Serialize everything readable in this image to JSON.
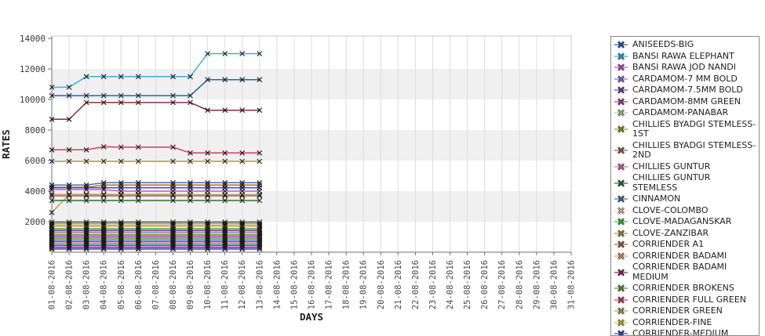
{
  "chart_data": {
    "type": "line",
    "title": "",
    "xlabel": "DAYS",
    "ylabel": "RATES",
    "legend_position": "right",
    "grid": "vertical-only",
    "ylim": [
      0,
      14000
    ],
    "y_tick_values": [
      2000,
      4000,
      6000,
      8000,
      10000,
      12000,
      14000
    ],
    "shaded_bands": [
      [
        10000,
        12000
      ],
      [
        6000,
        8000
      ],
      [
        2000,
        4000
      ]
    ],
    "x_tick_labels": [
      "01-08-2016",
      "02-08-2016",
      "03-08-2016",
      "04-08-2016",
      "05-08-2016",
      "06-08-2016",
      "07-08-2016",
      "08-08-2016",
      "09-08-2016",
      "10-08-2016",
      "11-08-2016",
      "12-08-2016",
      "13-08-2016",
      "14-08-2016",
      "15-08-2016",
      "16-08-2016",
      "17-08-2016",
      "18-08-2016",
      "19-08-2016",
      "20-08-2016",
      "21-08-2016",
      "22-08-2016",
      "23-08-2016",
      "24-08-2016",
      "25-08-2016",
      "26-08-2016",
      "27-08-2016",
      "28-08-2016",
      "29-08-2016",
      "30-08-2016",
      "31-08-2016"
    ],
    "data_dates": [
      "01-08-2016",
      "02-08-2016",
      "03-08-2016",
      "04-08-2016",
      "05-08-2016",
      "06-08-2016",
      "07-08-2016",
      "08-08-2016",
      "09-08-2016",
      "10-08-2016",
      "11-08-2016",
      "12-08-2016",
      "13-08-2016"
    ],
    "no_marker_date": "07-08-2016",
    "series": [
      {
        "name": "BANSI RAWA ELEPHANT",
        "color": "#35b1e0",
        "values": [
          10800,
          10800,
          11500,
          11500,
          11500,
          11500,
          11500,
          11500,
          11500,
          13000,
          13000,
          13000,
          13000
        ]
      },
      {
        "name": "ANISEEDS-BIG",
        "color": "#1f63b0",
        "values": [
          10250,
          10250,
          10250,
          10250,
          10250,
          10250,
          10250,
          10250,
          10250,
          11300,
          11300,
          11300,
          11300
        ]
      },
      {
        "name": "CORRIENDER BADAMI MEDIUM",
        "color": "#8b2a4a",
        "values": [
          8700,
          8700,
          9800,
          9800,
          9800,
          9800,
          9800,
          9800,
          9800,
          9300,
          9300,
          9300,
          9300
        ]
      },
      {
        "name": "CORRIENDER FULL GREEN",
        "color": "#d23b5a",
        "values": [
          6700,
          6700,
          6700,
          6900,
          6875,
          6875,
          6875,
          6875,
          6500,
          6500,
          6500,
          6500,
          6500
        ]
      },
      {
        "name": "CLOVE-ZANZIBAR",
        "color": "#a79a3a",
        "value": 5950
      },
      {
        "name": "CINNAMON",
        "color": "#4a6fb4",
        "values": [
          4400,
          4400,
          4400,
          4550,
          4550,
          4550,
          4550,
          4550,
          4550,
          4550,
          4550,
          4550,
          4550
        ]
      },
      {
        "name": "CORRIENDER A1",
        "color": "#a5693a",
        "values": [
          4250,
          4250,
          4250,
          4400,
          4400,
          4400,
          4400,
          4400,
          4400,
          4400,
          4400,
          4400,
          4400
        ]
      },
      {
        "name": "CORRIENDER-MEDIUM",
        "color": "#2f4fc0",
        "value": 4220
      },
      {
        "name": "BANSI RAWA JOD NANDI",
        "color": "#c94fc9",
        "values": [
          4100,
          4100,
          4100,
          4100,
          4000,
          4000,
          4000,
          4000,
          4000,
          4000,
          4000,
          4000,
          4000
        ]
      },
      {
        "name": "CORRIENDER BADAMI",
        "color": "#e89b70",
        "values": [
          3790,
          3790,
          3790,
          3790,
          3790,
          3790,
          3790,
          3790,
          null,
          null,
          null,
          null,
          null
        ]
      },
      {
        "name": "CHILLIES BYADGI STEMLESS-2ND",
        "color": "#a5604a",
        "value": 3690
      },
      {
        "name": "CORRIENDER GREEN",
        "color": "#b3a55e",
        "values": [
          2600,
          3770,
          3770,
          3770,
          3770,
          3770,
          3770,
          3770,
          3770,
          3770,
          3770,
          3770,
          3770
        ]
      },
      {
        "name": "CHILLIES GUNTUR STEMLESS",
        "color": "#2e7030",
        "value": 3385
      },
      {
        "name": "",
        "color": "#2a2a2a",
        "value": 1975
      },
      {
        "name": "CORRIENDER BROKENS",
        "color": "#6d8f2f",
        "value": 1860
      },
      {
        "name": "CLOVE-COLOMBO",
        "color": "#f0d8bc",
        "value": 1800
      },
      {
        "name": "CHILLIES GUNTUR",
        "color": "#e468b0",
        "value": 1740
      },
      {
        "name": "CORRIENDER-FINE",
        "color": "#becf31",
        "value": 1680
      },
      {
        "name": "CLOVE-MADAGANSKAR",
        "color": "#3dc13d",
        "value": 1560
      },
      {
        "name": "CARDAMOM-8MM GREEN",
        "color": "#a8439a",
        "value": 1470
      },
      {
        "name": "CARDAMOM-7.5MM BOLD",
        "color": "#7e3aa8",
        "value": 1400
      },
      {
        "name": "CARDAMOM-7 MM BOLD",
        "color": "#8d72d2",
        "value": 1310
      },
      {
        "name": "CARDAMOM-PANABAR",
        "color": "#a7d89e",
        "value": 1230
      },
      {
        "name": "CHILLIES BYADGI STEMLESS-1ST",
        "color": "#93a01e",
        "value": 1160
      },
      {
        "name": "",
        "color": "#7c5cd6",
        "value": 1080
      },
      {
        "name": "",
        "color": "#cc44cc",
        "value": 1000
      },
      {
        "name": "",
        "color": "#49a349",
        "value": 920
      },
      {
        "name": "",
        "color": "#e0823e",
        "value": 840
      },
      {
        "name": "",
        "color": "#4868d8",
        "value": 760
      },
      {
        "name": "",
        "color": "#6a3fb0",
        "value": 680
      },
      {
        "name": "",
        "color": "#e070a0",
        "value": 600
      },
      {
        "name": "",
        "color": "#3aa8a0",
        "value": 520
      },
      {
        "name": "",
        "color": "#c03a3a",
        "value": 440
      },
      {
        "name": "",
        "color": "#9a55e0",
        "value": 360
      },
      {
        "name": "",
        "color": "#3b4fc0",
        "value": 280
      },
      {
        "name": "",
        "color": "#5c2f9e",
        "value": 200
      }
    ]
  },
  "legend": {
    "items": [
      {
        "label": "ANISEEDS-BIG",
        "color": "#1f63b0"
      },
      {
        "label": "BANSI RAWA ELEPHANT",
        "color": "#35b1e0"
      },
      {
        "label": "BANSI RAWA JOD NANDI",
        "color": "#c94fc9"
      },
      {
        "label": "CARDAMOM-7 MM BOLD",
        "color": "#8d72d2"
      },
      {
        "label": "CARDAMOM-7.5MM BOLD",
        "color": "#7e3aa8"
      },
      {
        "label": "CARDAMOM-8MM GREEN",
        "color": "#a8439a"
      },
      {
        "label": "CARDAMOM-PANABAR",
        "color": "#a7d89e"
      },
      {
        "label": "CHILLIES BYADGI STEMLESS-1ST",
        "color": "#93a01e"
      },
      {
        "label": "CHILLIES BYADGI STEMLESS-2ND",
        "color": "#a5604a"
      },
      {
        "label": "CHILLIES GUNTUR",
        "color": "#e468b0"
      },
      {
        "label": "CHILLIES GUNTUR STEMLESS",
        "color": "#2e7030"
      },
      {
        "label": "CINNAMON",
        "color": "#4a6fb4"
      },
      {
        "label": "CLOVE-COLOMBO",
        "color": "#f0d8bc"
      },
      {
        "label": "CLOVE-MADAGANSKAR",
        "color": "#3dc13d"
      },
      {
        "label": "CLOVE-ZANZIBAR",
        "color": "#a79a3a"
      },
      {
        "label": "CORRIENDER A1",
        "color": "#a5693a"
      },
      {
        "label": "CORRIENDER BADAMI",
        "color": "#e89b70"
      },
      {
        "label": "CORRIENDER BADAMI MEDIUM",
        "color": "#8b2a4a"
      },
      {
        "label": "CORRIENDER BROKENS",
        "color": "#6d8f2f"
      },
      {
        "label": "CORRIENDER FULL GREEN",
        "color": "#d23b5a"
      },
      {
        "label": "CORRIENDER GREEN",
        "color": "#b3a55e"
      },
      {
        "label": "CORRIENDER-FINE",
        "color": "#becf31"
      },
      {
        "label": "CORRIENDER-MEDIUM",
        "color": "#2f4fc0"
      }
    ]
  },
  "style_colors": {
    "band": "#f0f0f0",
    "grid": "#dcdcdc",
    "plot_border": "#c8c8c8",
    "axis": "#707070",
    "tick_text": "#3a3a3a",
    "marker": "#1a1a1a"
  }
}
